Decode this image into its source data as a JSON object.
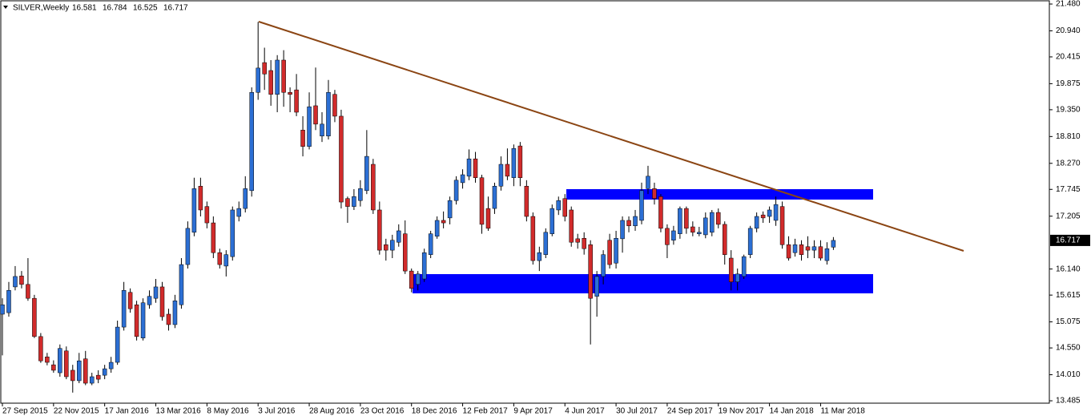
{
  "chart_data": {
    "type": "candlestick",
    "title": "SILVER,Weekly",
    "up_color": "#2c6fd4",
    "down_color": "#d12b2b",
    "ylim": [
      13.437,
      21.545
    ],
    "yticks": [
      {
        "value": 21.48,
        "label": "21.480"
      },
      {
        "value": 20.94,
        "label": "20.940"
      },
      {
        "value": 20.415,
        "label": "20.415"
      },
      {
        "value": 19.875,
        "label": "19.875"
      },
      {
        "value": 19.35,
        "label": "19.350"
      },
      {
        "value": 18.81,
        "label": "18.810"
      },
      {
        "value": 18.27,
        "label": "18.270"
      },
      {
        "value": 17.745,
        "label": "17.745"
      },
      {
        "value": 17.205,
        "label": "17.205"
      },
      {
        "value": 16.14,
        "label": "16.140"
      },
      {
        "value": 15.615,
        "label": "15.615"
      },
      {
        "value": 15.075,
        "label": "15.075"
      },
      {
        "value": 14.55,
        "label": "14.550"
      },
      {
        "value": 14.01,
        "label": "14.010"
      },
      {
        "value": 13.485,
        "label": "13.485"
      }
    ],
    "categories": [
      "27 Sep 2015",
      null,
      null,
      null,
      null,
      null,
      null,
      null,
      "22 Nov 2015",
      null,
      null,
      null,
      null,
      null,
      null,
      null,
      "17 Jan 2016",
      null,
      null,
      null,
      null,
      null,
      null,
      null,
      "13 Mar 2016",
      null,
      null,
      null,
      null,
      null,
      null,
      null,
      "8 May 2016",
      null,
      null,
      null,
      null,
      null,
      null,
      null,
      "3 Jul 2016",
      null,
      null,
      null,
      null,
      null,
      null,
      null,
      "28 Aug 2016",
      null,
      null,
      null,
      null,
      null,
      null,
      null,
      "23 Oct 2016",
      null,
      null,
      null,
      null,
      null,
      null,
      null,
      "18 Dec 2016",
      null,
      null,
      null,
      null,
      null,
      null,
      null,
      "12 Feb 2017",
      null,
      null,
      null,
      null,
      null,
      null,
      null,
      "9 Apr 2017",
      null,
      null,
      null,
      null,
      null,
      null,
      null,
      "4 Jun 2017",
      null,
      null,
      null,
      null,
      null,
      null,
      null,
      "30 Jul 2017",
      null,
      null,
      null,
      null,
      null,
      null,
      null,
      "24 Sep 2017",
      null,
      null,
      null,
      null,
      null,
      null,
      null,
      "19 Nov 2017",
      null,
      null,
      null,
      null,
      null,
      null,
      null,
      "14 Jan 2018",
      null,
      null,
      null,
      null,
      null,
      null,
      null,
      "11 Mar 2018",
      null,
      null
    ],
    "open": [
      15.23,
      15.26,
      15.78,
      16.0,
      15.83,
      15.55,
      14.78,
      14.37,
      14.21,
      14.05,
      14.49,
      14.1,
      13.89,
      14.33,
      13.84,
      14.0,
      14.0,
      14.13,
      14.26,
      14.97,
      15.67,
      15.42,
      14.75,
      15.42,
      15.55,
      15.78,
      15.23,
      15.02,
      15.42,
      16.23,
      16.88,
      17.81,
      17.4,
      17.07,
      16.47,
      16.2,
      16.39,
      17.2,
      17.36,
      17.72,
      19.7,
      20.3,
      20.14,
      19.66,
      20.35,
      19.7,
      19.75,
      18.94,
      18.61,
      19.43,
      18.82,
      18.82,
      19.66,
      19.22,
      17.56,
      17.4,
      17.52,
      17.72,
      18.25,
      17.33,
      16.63,
      16.52,
      16.68,
      16.85,
      16.1,
      15.83,
      15.94,
      16.43,
      16.8,
      17.12,
      17.17,
      17.52,
      17.88,
      18.01,
      18.36,
      17.98,
      17.36,
      17.36,
      17.81,
      18.25,
      17.98,
      18.62,
      17.81,
      17.2,
      16.31,
      16.43,
      16.85,
      17.33,
      17.56,
      17.33,
      16.75,
      16.76,
      16.63,
      15.59,
      15.99,
      16.72,
      16.26,
      16.75,
      17.12,
      17.01,
      17.12,
      17.76,
      17.76,
      17.6,
      16.96,
      16.72,
      16.85,
      17.36,
      16.99,
      16.85,
      16.83,
      16.88,
      17.28,
      17.04,
      16.36,
      15.88,
      15.99,
      16.43,
      16.96,
      17.23,
      17.2,
      17.12,
      17.4,
      16.63,
      16.47,
      16.63,
      16.59,
      16.52,
      16.59,
      16.31,
      16.581
    ],
    "high": [
      15.55,
      15.88,
      16.2,
      16.1,
      16.36,
      15.62,
      14.85,
      14.45,
      14.3,
      14.62,
      14.58,
      14.21,
      14.45,
      14.49,
      14.05,
      14.1,
      14.21,
      14.37,
      15.1,
      15.88,
      15.75,
      15.5,
      15.55,
      15.71,
      15.94,
      15.88,
      15.34,
      15.62,
      16.36,
      17.1,
      17.98,
      17.98,
      17.5,
      17.2,
      16.55,
      16.52,
      17.4,
      17.5,
      18.01,
      19.8,
      21.12,
      20.6,
      20.35,
      20.45,
      20.55,
      19.8,
      20.07,
      19.22,
      19.7,
      20.2,
      19.3,
      19.95,
      19.75,
      19.35,
      17.6,
      17.75,
      17.93,
      18.94,
      18.36,
      17.5,
      16.75,
      16.83,
      17.04,
      17.12,
      16.15,
      16.1,
      16.55,
      16.91,
      17.2,
      17.3,
      17.6,
      18.01,
      18.15,
      18.55,
      18.5,
      18.04,
      17.6,
      17.88,
      18.41,
      18.57,
      18.65,
      18.7,
      17.93,
      17.28,
      16.59,
      16.96,
      17.44,
      17.6,
      17.65,
      17.4,
      16.85,
      16.88,
      16.72,
      16.1,
      16.52,
      16.85,
      16.91,
      17.2,
      17.2,
      17.33,
      17.88,
      18.22,
      17.88,
      17.65,
      17.04,
      17.01,
      17.4,
      17.4,
      17.1,
      16.99,
      17.28,
      17.33,
      17.36,
      17.1,
      16.52,
      16.15,
      16.43,
      17.01,
      17.28,
      17.3,
      17.4,
      17.6,
      17.5,
      16.8,
      16.75,
      16.72,
      16.8,
      16.72,
      16.72,
      16.68,
      16.784
    ],
    "low": [
      14.4,
      15.18,
      15.71,
      15.75,
      15.5,
      14.75,
      14.25,
      14.2,
      14.05,
      13.97,
      13.92,
      13.65,
      13.84,
      13.8,
      13.8,
      13.84,
      13.92,
      14.05,
      14.21,
      14.9,
      15.26,
      14.7,
      14.7,
      15.34,
      15.46,
      15.1,
      14.9,
      14.95,
      15.34,
      16.15,
      16.8,
      17.2,
      16.96,
      16.36,
      16.15,
      15.99,
      16.31,
      17.1,
      17.28,
      17.6,
      19.55,
      19.75,
      19.43,
      19.3,
      19.41,
      19.3,
      19.22,
      18.41,
      18.55,
      18.94,
      18.7,
      18.75,
      19.1,
      17.36,
      17.07,
      17.33,
      17.4,
      17.65,
      17.25,
      16.43,
      16.31,
      16.36,
      16.59,
      16.04,
      15.67,
      15.71,
      15.88,
      16.36,
      16.75,
      16.96,
      17.04,
      17.44,
      17.76,
      17.93,
      17.88,
      16.85,
      16.91,
      17.25,
      17.72,
      17.93,
      17.81,
      17.81,
      17.1,
      16.23,
      16.1,
      16.36,
      16.8,
      17.23,
      17.1,
      16.59,
      16.55,
      16.43,
      14.62,
      15.18,
      15.83,
      16.15,
      16.15,
      16.47,
      16.88,
      16.91,
      17.04,
      17.65,
      17.44,
      16.88,
      16.36,
      16.63,
      16.75,
      16.85,
      16.8,
      16.8,
      16.76,
      16.8,
      16.96,
      16.23,
      15.71,
      15.71,
      15.94,
      16.36,
      16.88,
      17.07,
      17.07,
      17.01,
      16.55,
      16.31,
      16.39,
      16.31,
      16.36,
      16.36,
      16.31,
      16.23,
      16.525
    ],
    "close": [
      15.42,
      15.71,
      15.99,
      15.83,
      15.55,
      14.78,
      14.29,
      14.26,
      14.1,
      14.54,
      13.97,
      13.89,
      14.29,
      13.84,
      13.97,
      13.92,
      14.13,
      14.26,
      14.97,
      15.71,
      15.34,
      14.78,
      15.46,
      15.59,
      15.78,
      15.18,
      15.02,
      15.5,
      16.23,
      16.96,
      17.76,
      17.33,
      17.07,
      16.47,
      16.23,
      16.43,
      17.33,
      17.36,
      17.76,
      19.7,
      20.19,
      20.07,
      19.66,
      20.35,
      19.7,
      19.66,
      19.3,
      18.61,
      19.41,
      19.06,
      19.06,
      19.7,
      19.22,
      17.49,
      17.4,
      17.6,
      17.76,
      18.41,
      17.33,
      16.52,
      16.52,
      16.72,
      16.91,
      16.1,
      15.75,
      16.04,
      16.47,
      16.85,
      17.12,
      17.07,
      17.52,
      17.93,
      18.04,
      18.36,
      17.98,
      17.04,
      16.96,
      17.81,
      18.25,
      18.01,
      18.57,
      17.98,
      17.2,
      16.31,
      16.47,
      16.88,
      17.36,
      17.52,
      17.2,
      16.68,
      16.68,
      16.55,
      15.55,
      15.99,
      16.43,
      16.23,
      16.76,
      17.12,
      17.01,
      17.2,
      17.72,
      18.01,
      17.56,
      16.96,
      16.63,
      16.91,
      17.36,
      16.96,
      16.88,
      16.88,
      17.17,
      17.28,
      17.04,
      16.43,
      15.88,
      16.04,
      16.39,
      16.96,
      17.2,
      17.17,
      17.33,
      17.44,
      16.63,
      16.36,
      16.63,
      16.43,
      16.52,
      16.59,
      16.36,
      16.55,
      16.717
    ]
  }
}
